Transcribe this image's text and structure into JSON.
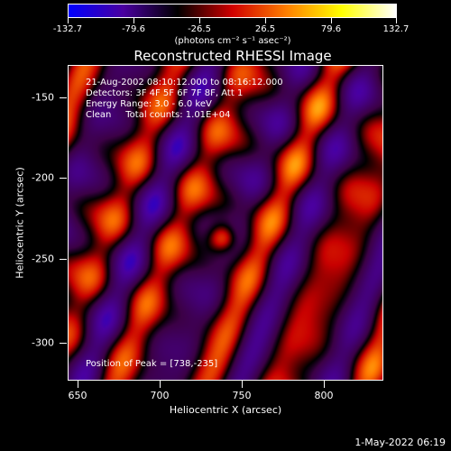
{
  "colorbar": {
    "ticks": [
      "-132.7",
      "-79.6",
      "-26.5",
      "26.5",
      "79.6",
      "132.7"
    ],
    "unit_label": "(photons cm⁻² s⁻¹ asec⁻²)",
    "colors": [
      "#0000ff",
      "#4a00a0",
      "#000000",
      "#d00000",
      "#ff8000",
      "#ffff00",
      "#ffffff"
    ]
  },
  "plot": {
    "title": "Reconstructed RHESSI Image",
    "info": {
      "time_range": "21-Aug-2002 08:10:12.000 to 08:16:12.000",
      "detectors": "Detectors: 3F 4F 5F 6F 7F 8F, Att 1",
      "energy": "Energy Range: 3.0 - 6.0 keV",
      "clean": "Clean     Total counts: 1.01E+04",
      "peak": "Position of Peak = [738,-235]"
    },
    "x_axis": {
      "label": "Heliocentric X (arcsec)",
      "ticks": [
        "650",
        "700",
        "750",
        "800"
      ],
      "range": [
        644,
        836
      ]
    },
    "y_axis": {
      "label": "Heliocentric Y (arcsec)",
      "ticks": [
        "-150",
        "-200",
        "-250",
        "-300"
      ],
      "range": [
        -322,
        -130
      ]
    },
    "peak_position": [
      738,
      -235
    ]
  },
  "footer": {
    "date": "1-May-2022 06:19"
  }
}
